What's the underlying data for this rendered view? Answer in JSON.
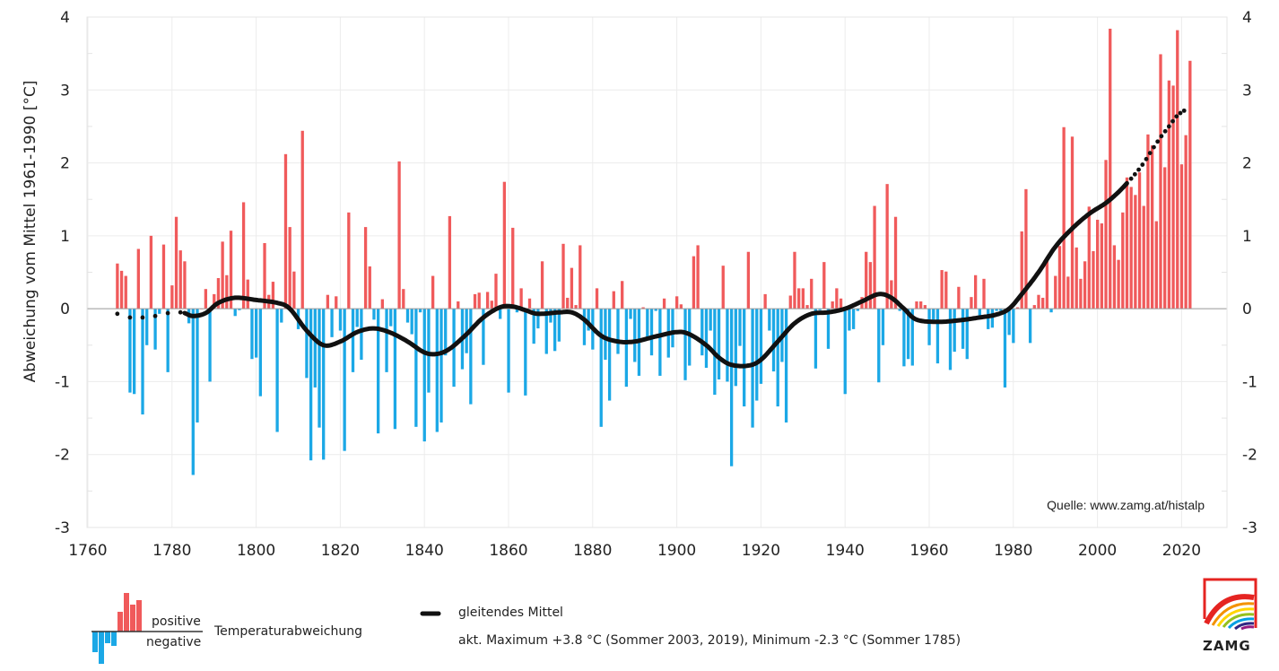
{
  "chart_data": {
    "type": "bar",
    "title": "",
    "xlabel": "",
    "ylabel": "Abweichung vom Mittel 1961-1990 [°C]",
    "xlim": [
      1760,
      2030
    ],
    "ylim": [
      -3,
      4
    ],
    "x_ticks": [
      1760,
      1780,
      1800,
      1820,
      1840,
      1860,
      1880,
      1900,
      1920,
      1940,
      1960,
      1980,
      2000,
      2020
    ],
    "y_ticks": [
      4,
      3,
      2,
      1,
      0,
      -1,
      -2,
      -3
    ],
    "grid": true,
    "colors": {
      "positive": "#f05a5b",
      "negative": "#1ba8e6",
      "smooth": "#111111"
    },
    "series": [
      {
        "name": "Temperaturabweichung",
        "start_year": 1767,
        "values": [
          0.62,
          0.52,
          0.45,
          -1.15,
          -1.17,
          0.82,
          -1.45,
          -0.5,
          1.0,
          -0.56,
          -0.07,
          0.88,
          -0.87,
          0.32,
          1.26,
          0.8,
          0.65,
          -0.2,
          -2.28,
          -1.56,
          0.0,
          0.27,
          -1.0,
          0.2,
          0.42,
          0.92,
          0.46,
          1.07,
          -0.1,
          -0.02,
          1.46,
          0.4,
          -0.69,
          -0.67,
          -1.2,
          0.9,
          0.19,
          0.37,
          -1.69,
          -0.19,
          2.12,
          1.12,
          0.51,
          -0.28,
          2.44,
          -0.95,
          -2.08,
          -1.08,
          -1.63,
          -2.07,
          0.19,
          -0.39,
          0.17,
          -0.3,
          -1.95,
          1.32,
          -0.87,
          -0.25,
          -0.7,
          1.12,
          0.58,
          -0.15,
          -1.71,
          0.13,
          -0.87,
          -0.24,
          -1.65,
          2.02,
          0.27,
          -0.19,
          -0.35,
          -1.62,
          -0.05,
          -1.82,
          -1.15,
          0.45,
          -1.69,
          -1.56,
          -0.64,
          1.27,
          -1.07,
          0.1,
          -0.83,
          -0.61,
          -1.31,
          0.2,
          0.22,
          -0.77,
          0.23,
          0.11,
          0.48,
          -0.14,
          1.74,
          -1.15,
          1.11,
          -0.05,
          0.28,
          -1.19,
          0.14,
          -0.48,
          -0.27,
          0.65,
          -0.62,
          -0.19,
          -0.58,
          -0.45,
          0.89,
          0.15,
          0.56,
          0.05,
          0.87,
          -0.5,
          -0.3,
          -0.56,
          0.28,
          -1.62,
          -0.7,
          -1.26,
          0.24,
          -0.62,
          0.38,
          -1.07,
          -0.14,
          -0.73,
          -0.92,
          0.02,
          -0.4,
          -0.64,
          -0.03,
          -0.92,
          0.14,
          -0.67,
          -0.53,
          0.17,
          0.06,
          -0.98,
          -0.78,
          0.72,
          0.87,
          -0.64,
          -0.81,
          -0.3,
          -1.18,
          -0.97,
          0.59,
          -1.0,
          -2.16,
          -1.06,
          -0.51,
          -1.34,
          0.78,
          -1.63,
          -1.26,
          -1.03,
          0.2,
          -0.3,
          -0.86,
          -1.34,
          -0.73,
          -1.56,
          0.18,
          0.78,
          0.28,
          0.28,
          0.05,
          0.41,
          -0.82,
          -0.02,
          0.64,
          -0.55,
          0.1,
          0.28,
          0.14,
          -1.17,
          -0.3,
          -0.28,
          -0.03,
          0.16,
          0.78,
          0.64,
          1.41,
          -1.01,
          -0.5,
          1.71,
          0.39,
          1.26,
          -0.03,
          -0.79,
          -0.69,
          -0.78,
          0.1,
          0.1,
          0.05,
          -0.5,
          -0.15,
          -0.75,
          0.53,
          0.51,
          -0.84,
          -0.59,
          0.3,
          -0.55,
          -0.69,
          0.16,
          0.46,
          -0.09,
          0.41,
          -0.28,
          -0.26,
          -0.03,
          -0.03,
          -1.08,
          -0.36,
          -0.47,
          0.02,
          1.06,
          1.64,
          -0.47,
          0.05,
          0.19,
          0.15,
          0.69,
          -0.05,
          0.45,
          0.86,
          2.49,
          0.44,
          2.36,
          0.84,
          0.41,
          0.65,
          1.4,
          0.79,
          1.22,
          1.17,
          2.04,
          3.84,
          0.87,
          0.67,
          1.32,
          1.8,
          1.67,
          1.56,
          1.87,
          1.41,
          2.39,
          2.24,
          1.2,
          3.49,
          1.94,
          3.13,
          3.06,
          3.82,
          1.98,
          2.38,
          3.4
        ]
      },
      {
        "name": "gleitendes Mittel",
        "type": "line",
        "dotted_before": 1783,
        "dotted_after": 2007,
        "points": [
          [
            1767,
            -0.07
          ],
          [
            1770,
            -0.12
          ],
          [
            1773,
            -0.12
          ],
          [
            1776,
            -0.1
          ],
          [
            1779,
            -0.06
          ],
          [
            1782,
            -0.05
          ],
          [
            1783,
            -0.06
          ],
          [
            1785,
            -0.1
          ],
          [
            1788,
            -0.06
          ],
          [
            1791,
            0.08
          ],
          [
            1795,
            0.15
          ],
          [
            1800,
            0.12
          ],
          [
            1805,
            0.08
          ],
          [
            1808,
            0.0
          ],
          [
            1812,
            -0.3
          ],
          [
            1816,
            -0.5
          ],
          [
            1820,
            -0.45
          ],
          [
            1824,
            -0.32
          ],
          [
            1828,
            -0.27
          ],
          [
            1832,
            -0.33
          ],
          [
            1836,
            -0.45
          ],
          [
            1840,
            -0.6
          ],
          [
            1843,
            -0.62
          ],
          [
            1846,
            -0.55
          ],
          [
            1850,
            -0.35
          ],
          [
            1854,
            -0.12
          ],
          [
            1858,
            0.02
          ],
          [
            1861,
            0.03
          ],
          [
            1864,
            -0.02
          ],
          [
            1867,
            -0.07
          ],
          [
            1872,
            -0.05
          ],
          [
            1875,
            -0.05
          ],
          [
            1878,
            -0.15
          ],
          [
            1882,
            -0.37
          ],
          [
            1886,
            -0.45
          ],
          [
            1890,
            -0.45
          ],
          [
            1895,
            -0.38
          ],
          [
            1900,
            -0.32
          ],
          [
            1903,
            -0.35
          ],
          [
            1907,
            -0.5
          ],
          [
            1910,
            -0.67
          ],
          [
            1913,
            -0.77
          ],
          [
            1917,
            -0.78
          ],
          [
            1920,
            -0.7
          ],
          [
            1924,
            -0.45
          ],
          [
            1928,
            -0.2
          ],
          [
            1932,
            -0.07
          ],
          [
            1936,
            -0.05
          ],
          [
            1940,
            0.0
          ],
          [
            1944,
            0.1
          ],
          [
            1948,
            0.2
          ],
          [
            1951,
            0.15
          ],
          [
            1954,
            0.0
          ],
          [
            1957,
            -0.15
          ],
          [
            1962,
            -0.18
          ],
          [
            1967,
            -0.16
          ],
          [
            1972,
            -0.12
          ],
          [
            1976,
            -0.08
          ],
          [
            1979,
            0.0
          ],
          [
            1982,
            0.2
          ],
          [
            1986,
            0.5
          ],
          [
            1990,
            0.85
          ],
          [
            1994,
            1.1
          ],
          [
            1998,
            1.3
          ],
          [
            2002,
            1.45
          ],
          [
            2005,
            1.6
          ],
          [
            2007,
            1.72
          ],
          [
            2009,
            1.85
          ],
          [
            2011,
            2.0
          ],
          [
            2013,
            2.18
          ],
          [
            2015,
            2.35
          ],
          [
            2017,
            2.5
          ],
          [
            2019,
            2.65
          ],
          [
            2021,
            2.73
          ]
        ]
      }
    ],
    "annotations": [
      "Quelle: www.zamg.at/histalp"
    ]
  },
  "legend": {
    "positive_label": "positive",
    "negative_label": "negative",
    "bars_label": "Temperaturabweichung",
    "line_label": "gleitendes Mittel",
    "extremes_note": "akt. Maximum +3.8 °C (Sommer 2003, 2019), Minimum -2.3 °C (Sommer 1785)"
  },
  "logo": {
    "text": "ZAMG"
  }
}
